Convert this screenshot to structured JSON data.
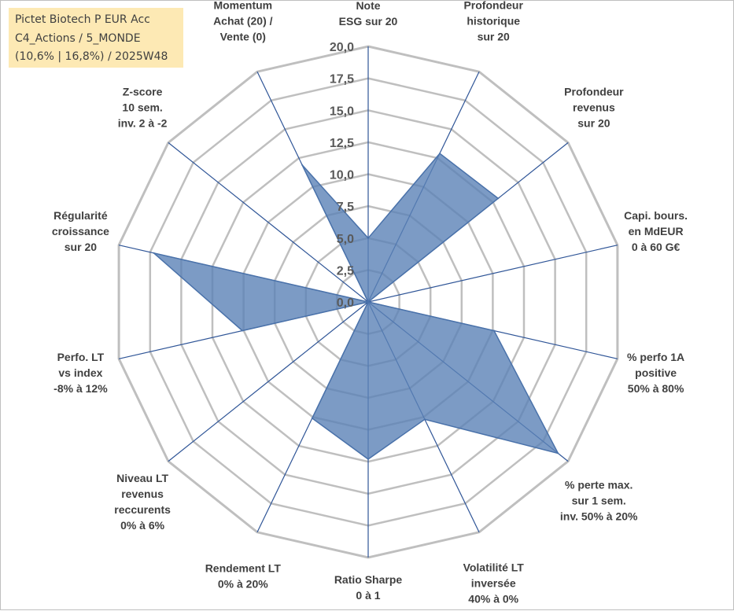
{
  "info_box": {
    "line1": "Pictet Biotech P EUR Acc",
    "line2": "C4_Actions / 5_MONDE",
    "line3": "(10,6% | 16,8%) / 2025W48"
  },
  "colors": {
    "fill": "#5b82b6",
    "fill_opacity": 0.8,
    "stroke": "#4a72aa",
    "spoke": "#2f5597",
    "grid": "#bfbfbf",
    "box_bg": "#fde9b4"
  },
  "chart_data": {
    "type": "radar",
    "title": "",
    "rmin": 0,
    "rmax": 20,
    "ticks": [
      "0,0",
      "2,5",
      "5,0",
      "7,5",
      "10,0",
      "12,5",
      "15,0",
      "17,5",
      "20,0"
    ],
    "tick_values": [
      0,
      2.5,
      5,
      7.5,
      10,
      12.5,
      15,
      17.5,
      20
    ],
    "axes": [
      {
        "label": [
          "Note",
          "ESG sur 20"
        ]
      },
      {
        "label": [
          "Profondeur",
          "historique",
          "sur 20"
        ]
      },
      {
        "label": [
          "Profondeur",
          "revenus",
          "sur 20"
        ]
      },
      {
        "label": [
          "Capi. bours.",
          "en MdEUR",
          "0 à 60 G€"
        ]
      },
      {
        "label": [
          "% perfo 1A",
          "positive",
          "50% à 80%"
        ]
      },
      {
        "label": [
          "% perte max.",
          "sur 1 sem.",
          "inv. 50% à 20%"
        ]
      },
      {
        "label": [
          "Volatilité LT",
          "inversée",
          "40% à 0%"
        ]
      },
      {
        "label": [
          "Ratio Sharpe",
          "0 à 1"
        ]
      },
      {
        "label": [
          "Rendement LT",
          "0% à 20%"
        ]
      },
      {
        "label": [
          "Niveau LT",
          "revenus",
          "reccurents",
          "0% à 6%"
        ]
      },
      {
        "label": [
          "Perfo. LT",
          "vs index",
          "-8% à 12%"
        ]
      },
      {
        "label": [
          "Régularité",
          "croissance",
          "sur 20"
        ]
      },
      {
        "label": [
          "Z-score",
          "10 sem.",
          "inv. 2 à -2"
        ]
      },
      {
        "label": [
          "Momentum",
          "Achat (20) /",
          "Vente (0)"
        ]
      }
    ],
    "series": [
      {
        "name": "Pictet Biotech P EUR Acc",
        "values": [
          5.0,
          12.9,
          13.0,
          0.0,
          10.1,
          19.0,
          10.2,
          12.3,
          10.1,
          0.0,
          10.1,
          17.2,
          0.0,
          11.9
        ]
      }
    ]
  }
}
